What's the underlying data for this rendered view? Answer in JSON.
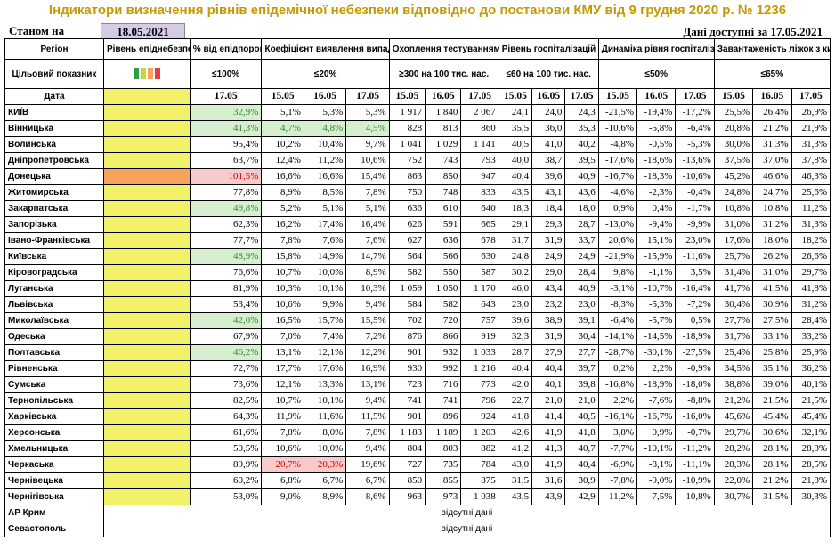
{
  "title": "Індикатори визначення рівнів епідемічної небезпеки відповідно до постанови КМУ від 9 грудня 2020 р. № 1236",
  "as_of_label": "Станом на",
  "as_of_date": "18.05.2021",
  "data_available": "Дані доступні за  17.05.2021",
  "headers": {
    "region": "Регіон",
    "level": "Рівень епіднебезпеки",
    "pct_threshold": "% від епідпорогу",
    "detection": "Коефіцієнт виявлення випадків інфікування",
    "testing": "Охоплення тестуванням",
    "hosp_level": "Рівень госпіталізацій",
    "hosp_dynamics": "Динаміка рівня госпіталізацій",
    "oxygen": "Завантаженість ліжок з киснем"
  },
  "target_row": {
    "label": "Цільовий показник",
    "pct": "≤100%",
    "detection": "≤20%",
    "testing": "≥300 на 100 тис. нас.",
    "hosp_level": "≤60 на 100 тис. нас.",
    "hosp_dynamics": "≤50%",
    "oxygen": "≤65%"
  },
  "level_swatch_colors": [
    "#2e9e3e",
    "#c7d63a",
    "#f7a35c",
    "#e0404a"
  ],
  "date_row": {
    "label": "Дата",
    "pct": "17.05",
    "detection": [
      "15.05",
      "16.05",
      "17.05"
    ],
    "testing": [
      "15.05",
      "16.05",
      "17.05"
    ],
    "hosp_level": [
      "15.05",
      "16.05",
      "17.05"
    ],
    "hosp_dynamics": [
      "15.05",
      "16.05",
      "17.05"
    ],
    "oxygen": [
      "15.05",
      "16.05",
      "17.05"
    ]
  },
  "rows": [
    {
      "region": "КИЇВ",
      "level": "yellow",
      "pct": "32,9%",
      "pct_style": "green",
      "det": [
        "5,1%",
        "5,3%",
        "5,3%"
      ],
      "det_style": [
        "",
        "",
        ""
      ],
      "test": [
        "1 917",
        "1 840",
        "2 067"
      ],
      "hosp": [
        "24,1",
        "24,0",
        "24,3"
      ],
      "dyn": [
        "-21,5%",
        "-19,4%",
        "-17,2%"
      ],
      "oxy": [
        "25,5%",
        "26,4%",
        "26,9%"
      ]
    },
    {
      "region": "Вінницька",
      "level": "yellow",
      "pct": "41,3%",
      "pct_style": "green",
      "det": [
        "4,7%",
        "4,8%",
        "4,5%"
      ],
      "det_style": [
        "green",
        "green",
        "green"
      ],
      "test": [
        "828",
        "813",
        "860"
      ],
      "hosp": [
        "35,5",
        "36,0",
        "35,3"
      ],
      "dyn": [
        "-10,6%",
        "-5,8%",
        "-6,4%"
      ],
      "oxy": [
        "20,8%",
        "21,2%",
        "21,9%"
      ]
    },
    {
      "region": "Волинська",
      "level": "yellow",
      "pct": "95,4%",
      "pct_style": "",
      "det": [
        "10,2%",
        "10,4%",
        "9,7%"
      ],
      "det_style": [
        "",
        "",
        ""
      ],
      "test": [
        "1 041",
        "1 029",
        "1 141"
      ],
      "hosp": [
        "40,5",
        "41,0",
        "40,2"
      ],
      "dyn": [
        "-4,8%",
        "-0,5%",
        "-5,3%"
      ],
      "oxy": [
        "30,0%",
        "31,3%",
        "31,3%"
      ]
    },
    {
      "region": "Дніпропетровська",
      "level": "yellow",
      "pct": "63,7%",
      "pct_style": "",
      "det": [
        "12,4%",
        "11,2%",
        "10,6%"
      ],
      "det_style": [
        "",
        "",
        ""
      ],
      "test": [
        "752",
        "743",
        "793"
      ],
      "hosp": [
        "40,0",
        "38,7",
        "39,5"
      ],
      "dyn": [
        "-17,6%",
        "-18,6%",
        "-13,6%"
      ],
      "oxy": [
        "37,5%",
        "37,0%",
        "37,8%"
      ]
    },
    {
      "region": "Донецька",
      "level": "orange",
      "pct": "101,5%",
      "pct_style": "red",
      "det": [
        "16,6%",
        "16,6%",
        "15,4%"
      ],
      "det_style": [
        "",
        "",
        ""
      ],
      "test": [
        "863",
        "850",
        "947"
      ],
      "hosp": [
        "40,4",
        "39,6",
        "40,9"
      ],
      "dyn": [
        "-16,7%",
        "-18,3%",
        "-10,6%"
      ],
      "oxy": [
        "45,2%",
        "46,6%",
        "46,3%"
      ]
    },
    {
      "region": "Житомирська",
      "level": "yellow",
      "pct": "77,8%",
      "pct_style": "",
      "det": [
        "8,9%",
        "8,5%",
        "7,8%"
      ],
      "det_style": [
        "",
        "",
        ""
      ],
      "test": [
        "750",
        "748",
        "833"
      ],
      "hosp": [
        "43,5",
        "43,1",
        "43,6"
      ],
      "dyn": [
        "-4,6%",
        "-2,3%",
        "-0,4%"
      ],
      "oxy": [
        "24,8%",
        "24,7%",
        "25,6%"
      ]
    },
    {
      "region": "Закарпатська",
      "level": "yellow",
      "pct": "49,8%",
      "pct_style": "green",
      "det": [
        "5,2%",
        "5,1%",
        "5,1%"
      ],
      "det_style": [
        "",
        "",
        ""
      ],
      "test": [
        "636",
        "610",
        "640"
      ],
      "hosp": [
        "18,3",
        "18,4",
        "18,0"
      ],
      "dyn": [
        "0,9%",
        "0,4%",
        "-1,7%"
      ],
      "oxy": [
        "10,8%",
        "10,8%",
        "11,2%"
      ]
    },
    {
      "region": "Запорізька",
      "level": "yellow",
      "pct": "62,3%",
      "pct_style": "",
      "det": [
        "16,2%",
        "17,4%",
        "16,4%"
      ],
      "det_style": [
        "",
        "",
        ""
      ],
      "test": [
        "626",
        "591",
        "665"
      ],
      "hosp": [
        "29,1",
        "29,3",
        "28,7"
      ],
      "dyn": [
        "-13,0%",
        "-9,4%",
        "-9,9%"
      ],
      "oxy": [
        "31,0%",
        "31,2%",
        "31,3%"
      ]
    },
    {
      "region": "Івано-Франківська",
      "level": "yellow",
      "pct": "77,7%",
      "pct_style": "",
      "det": [
        "7,8%",
        "7,6%",
        "7,6%"
      ],
      "det_style": [
        "",
        "",
        ""
      ],
      "test": [
        "627",
        "636",
        "678"
      ],
      "hosp": [
        "31,7",
        "31,9",
        "33,7"
      ],
      "dyn": [
        "20,6%",
        "15,1%",
        "23,0%"
      ],
      "oxy": [
        "17,6%",
        "18,0%",
        "18,2%"
      ]
    },
    {
      "region": "Київська",
      "level": "yellow",
      "pct": "48,9%",
      "pct_style": "green",
      "det": [
        "15,8%",
        "14,9%",
        "14,7%"
      ],
      "det_style": [
        "",
        "",
        ""
      ],
      "test": [
        "564",
        "566",
        "630"
      ],
      "hosp": [
        "24,8",
        "24,9",
        "24,9"
      ],
      "dyn": [
        "-21,9%",
        "-15,9%",
        "-11,6%"
      ],
      "oxy": [
        "25,7%",
        "26,2%",
        "26,6%"
      ]
    },
    {
      "region": "Кіровоградська",
      "level": "yellow",
      "pct": "76,6%",
      "pct_style": "",
      "det": [
        "10,7%",
        "10,0%",
        "8,9%"
      ],
      "det_style": [
        "",
        "",
        ""
      ],
      "test": [
        "582",
        "550",
        "587"
      ],
      "hosp": [
        "30,2",
        "29,0",
        "28,4"
      ],
      "dyn": [
        "9,8%",
        "-1,1%",
        "3,5%"
      ],
      "oxy": [
        "31,4%",
        "31,0%",
        "29,7%"
      ]
    },
    {
      "region": "Луганська",
      "level": "yellow",
      "pct": "81,9%",
      "pct_style": "",
      "det": [
        "10,3%",
        "10,1%",
        "10,3%"
      ],
      "det_style": [
        "",
        "",
        ""
      ],
      "test": [
        "1 059",
        "1 050",
        "1 170"
      ],
      "hosp": [
        "46,0",
        "43,4",
        "40,9"
      ],
      "dyn": [
        "-3,1%",
        "-10,7%",
        "-16,4%"
      ],
      "oxy": [
        "41,7%",
        "41,5%",
        "41,8%"
      ]
    },
    {
      "region": "Львівська",
      "level": "yellow",
      "pct": "53,4%",
      "pct_style": "",
      "det": [
        "10,6%",
        "9,9%",
        "9,4%"
      ],
      "det_style": [
        "",
        "",
        ""
      ],
      "test": [
        "584",
        "582",
        "643"
      ],
      "hosp": [
        "23,0",
        "23,2",
        "23,0"
      ],
      "dyn": [
        "-8,3%",
        "-5,3%",
        "-7,2%"
      ],
      "oxy": [
        "30,4%",
        "30,9%",
        "31,2%"
      ]
    },
    {
      "region": "Миколаївська",
      "level": "yellow",
      "pct": "42,0%",
      "pct_style": "green",
      "det": [
        "16,5%",
        "15,7%",
        "15,5%"
      ],
      "det_style": [
        "",
        "",
        ""
      ],
      "test": [
        "702",
        "720",
        "757"
      ],
      "hosp": [
        "39,6",
        "38,9",
        "39,1"
      ],
      "dyn": [
        "-6,4%",
        "-5,7%",
        "0,5%"
      ],
      "oxy": [
        "27,7%",
        "27,5%",
        "28,4%"
      ]
    },
    {
      "region": "Одеська",
      "level": "yellow",
      "pct": "67,9%",
      "pct_style": "",
      "det": [
        "7,0%",
        "7,4%",
        "7,2%"
      ],
      "det_style": [
        "",
        "",
        ""
      ],
      "test": [
        "876",
        "866",
        "919"
      ],
      "hosp": [
        "32,3",
        "31,9",
        "30,4"
      ],
      "dyn": [
        "-14,1%",
        "-14,5%",
        "-18,9%"
      ],
      "oxy": [
        "31,7%",
        "33,1%",
        "33,2%"
      ]
    },
    {
      "region": "Полтавська",
      "level": "yellow",
      "pct": "46,2%",
      "pct_style": "green",
      "det": [
        "13,1%",
        "12,1%",
        "12,2%"
      ],
      "det_style": [
        "",
        "",
        ""
      ],
      "test": [
        "901",
        "932",
        "1 033"
      ],
      "hosp": [
        "28,7",
        "27,9",
        "27,7"
      ],
      "dyn": [
        "-28,7%",
        "-30,1%",
        "-27,5%"
      ],
      "oxy": [
        "25,4%",
        "25,8%",
        "25,9%"
      ]
    },
    {
      "region": "Рівненська",
      "level": "yellow",
      "pct": "72,7%",
      "pct_style": "",
      "det": [
        "17,7%",
        "17,6%",
        "16,9%"
      ],
      "det_style": [
        "",
        "",
        ""
      ],
      "test": [
        "930",
        "992",
        "1 216"
      ],
      "hosp": [
        "40,4",
        "40,4",
        "39,7"
      ],
      "dyn": [
        "0,2%",
        "2,2%",
        "-0,9%"
      ],
      "oxy": [
        "34,5%",
        "35,1%",
        "36,2%"
      ]
    },
    {
      "region": "Сумська",
      "level": "yellow",
      "pct": "73,6%",
      "pct_style": "",
      "det": [
        "12,1%",
        "13,3%",
        "13,1%"
      ],
      "det_style": [
        "",
        "",
        ""
      ],
      "test": [
        "723",
        "716",
        "773"
      ],
      "hosp": [
        "42,0",
        "40,1",
        "39,8"
      ],
      "dyn": [
        "-16,8%",
        "-18,9%",
        "-18,0%"
      ],
      "oxy": [
        "38,8%",
        "39,0%",
        "40,1%"
      ]
    },
    {
      "region": "Тернопільська",
      "level": "yellow",
      "pct": "82,5%",
      "pct_style": "",
      "det": [
        "10,7%",
        "10,1%",
        "9,4%"
      ],
      "det_style": [
        "",
        "",
        ""
      ],
      "test": [
        "741",
        "741",
        "796"
      ],
      "hosp": [
        "22,7",
        "21,0",
        "21,0"
      ],
      "dyn": [
        "2,2%",
        "-7,6%",
        "-8,8%"
      ],
      "oxy": [
        "21,2%",
        "21,5%",
        "21,5%"
      ]
    },
    {
      "region": "Харківська",
      "level": "yellow",
      "pct": "64,3%",
      "pct_style": "",
      "det": [
        "11,9%",
        "11,6%",
        "11,5%"
      ],
      "det_style": [
        "",
        "",
        ""
      ],
      "test": [
        "901",
        "896",
        "924"
      ],
      "hosp": [
        "41,8",
        "41,4",
        "40,5"
      ],
      "dyn": [
        "-16,1%",
        "-16,7%",
        "-16,0%"
      ],
      "oxy": [
        "45,6%",
        "45,4%",
        "45,4%"
      ]
    },
    {
      "region": "Херсонська",
      "level": "yellow",
      "pct": "61,6%",
      "pct_style": "",
      "det": [
        "7,8%",
        "8,0%",
        "7,8%"
      ],
      "det_style": [
        "",
        "",
        ""
      ],
      "test": [
        "1 183",
        "1 189",
        "1 203"
      ],
      "hosp": [
        "42,6",
        "41,9",
        "41,8"
      ],
      "dyn": [
        "3,8%",
        "0,9%",
        "-0,7%"
      ],
      "oxy": [
        "29,7%",
        "30,6%",
        "32,1%"
      ]
    },
    {
      "region": "Хмельницька",
      "level": "yellow",
      "pct": "50,5%",
      "pct_style": "",
      "det": [
        "10,6%",
        "10,0%",
        "9,4%"
      ],
      "det_style": [
        "",
        "",
        ""
      ],
      "test": [
        "804",
        "803",
        "882"
      ],
      "hosp": [
        "41,2",
        "41,3",
        "40,7"
      ],
      "dyn": [
        "-7,7%",
        "-10,1%",
        "-11,2%"
      ],
      "oxy": [
        "28,2%",
        "28,1%",
        "28,8%"
      ]
    },
    {
      "region": "Черкаська",
      "level": "yellow",
      "pct": "89,9%",
      "pct_style": "",
      "det": [
        "20,7%",
        "20,3%",
        "19,6%"
      ],
      "det_style": [
        "red",
        "red",
        ""
      ],
      "test": [
        "727",
        "735",
        "784"
      ],
      "hosp": [
        "43,0",
        "41,9",
        "40,4"
      ],
      "dyn": [
        "-6,9%",
        "-8,1%",
        "-11,1%"
      ],
      "oxy": [
        "28,3%",
        "28,1%",
        "28,5%"
      ]
    },
    {
      "region": "Чернівецька",
      "level": "yellow",
      "pct": "60,2%",
      "pct_style": "",
      "det": [
        "6,8%",
        "6,7%",
        "6,7%"
      ],
      "det_style": [
        "",
        "",
        ""
      ],
      "test": [
        "850",
        "855",
        "875"
      ],
      "hosp": [
        "31,5",
        "31,6",
        "30,9"
      ],
      "dyn": [
        "-7,8%",
        "-9,0%",
        "-10,9%"
      ],
      "oxy": [
        "22,0%",
        "21,2%",
        "21,8%"
      ]
    },
    {
      "region": "Чернігівська",
      "level": "yellow",
      "pct": "53,0%",
      "pct_style": "",
      "det": [
        "9,0%",
        "8,9%",
        "8,6%"
      ],
      "det_style": [
        "",
        "",
        ""
      ],
      "test": [
        "963",
        "973",
        "1 038"
      ],
      "hosp": [
        "43,5",
        "43,9",
        "42,9"
      ],
      "dyn": [
        "-11,2%",
        "-7,5%",
        "-10,8%"
      ],
      "oxy": [
        "30,7%",
        "31,5%",
        "30,3%"
      ]
    }
  ],
  "missing_rows": [
    {
      "region": "АР Крим",
      "text": "відсутні дані"
    },
    {
      "region": "Севастополь",
      "text": "відсутні дані"
    }
  ]
}
